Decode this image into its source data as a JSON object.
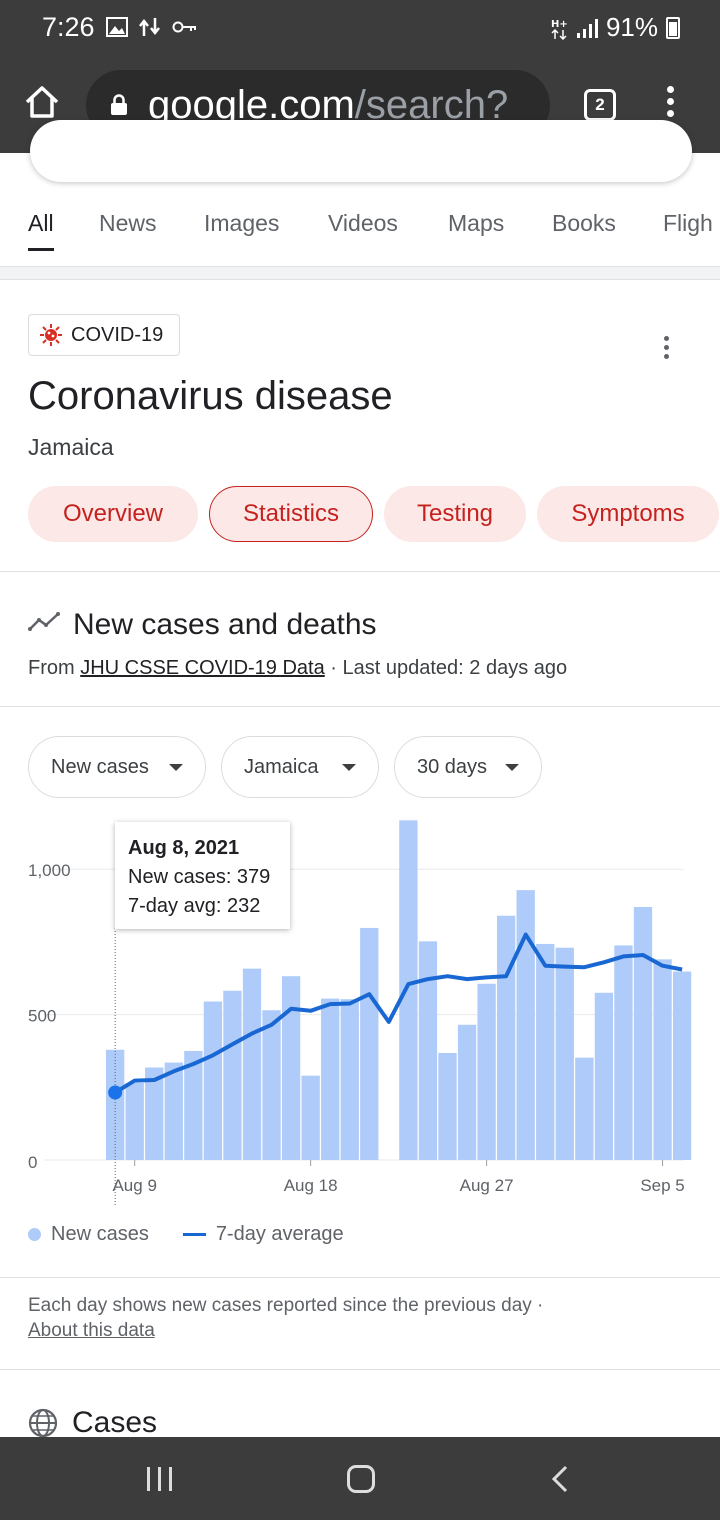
{
  "status_bar": {
    "time": "7:26",
    "network": "H+",
    "battery": "91%",
    "icons": [
      "image-icon",
      "data-transfer-icon",
      "vpn-key-icon",
      "network-type-icon",
      "signal-icon",
      "battery-icon"
    ]
  },
  "browser": {
    "url_host": "google.com",
    "url_path": "/search?",
    "tab_count": "2"
  },
  "search_tabs": [
    "All",
    "News",
    "Images",
    "Videos",
    "Maps",
    "Books",
    "Fligh"
  ],
  "card": {
    "chip": "COVID-19",
    "title": "Coronavirus disease",
    "subtitle": "Jamaica",
    "pills": [
      "Overview",
      "Statistics",
      "Testing",
      "Symptoms"
    ],
    "active_pill": "Statistics"
  },
  "section": {
    "title": "New cases and deaths",
    "source_prefix": "From ",
    "source_link": "JHU CSSE COVID-19 Data",
    "updated": " · Last updated: 2 days ago"
  },
  "filters": [
    "New cases",
    "Jamaica",
    "30 days"
  ],
  "tooltip": {
    "date": "Aug 8, 2021",
    "new_cases": "New cases: 379",
    "avg": "7-day avg: 232"
  },
  "chart_data": {
    "type": "bar",
    "x": [
      "Aug 8",
      "Aug 9",
      "Aug 10",
      "Aug 11",
      "Aug 12",
      "Aug 13",
      "Aug 14",
      "Aug 15",
      "Aug 16",
      "Aug 17",
      "Aug 18",
      "Aug 19",
      "Aug 20",
      "Aug 21",
      "Aug 22",
      "Aug 23",
      "Aug 24",
      "Aug 25",
      "Aug 26",
      "Aug 27",
      "Aug 28",
      "Aug 29",
      "Aug 30",
      "Aug 31",
      "Sep 1",
      "Sep 2",
      "Sep 3",
      "Sep 4",
      "Sep 5",
      "Sep 6"
    ],
    "series": [
      {
        "name": "New cases",
        "type": "bar",
        "color": "#aecbfa",
        "values": [
          379,
          265,
          318,
          335,
          375,
          545,
          582,
          658,
          515,
          632,
          290,
          555,
          553,
          798,
          0,
          1168,
          752,
          368,
          465,
          606,
          840,
          928,
          743,
          730,
          352,
          575,
          738,
          870,
          690,
          648
        ]
      },
      {
        "name": "7-day average",
        "type": "line",
        "color": "#1967d2",
        "values": [
          232,
          273,
          275,
          305,
          330,
          360,
          398,
          435,
          465,
          520,
          513,
          536,
          538,
          570,
          475,
          605,
          622,
          632,
          622,
          628,
          632,
          775,
          668,
          665,
          663,
          680,
          700,
          705,
          668,
          655
        ]
      }
    ],
    "tick_labels": [
      "Aug 9",
      "Aug 18",
      "Aug 27",
      "Sep 5"
    ],
    "y_ticks": [
      0,
      500,
      1000
    ],
    "y_tick_labels": [
      "0",
      "500",
      "1,000"
    ],
    "ylim": [
      0,
      1200
    ],
    "highlight_index": 0,
    "legend": [
      "New cases",
      "7-day average"
    ]
  },
  "footnote": {
    "text": "Each day shows new cases reported since the previous day",
    "sep": " ·",
    "link": "About this data"
  },
  "next_section": {
    "title": "Cases"
  }
}
